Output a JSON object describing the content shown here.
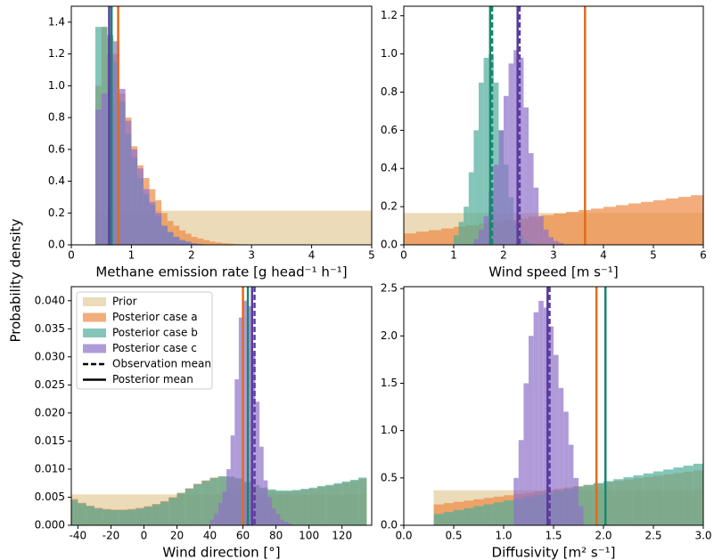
{
  "ylabel": "Probability density",
  "chart_data": [
    {
      "type": "histogram",
      "xlabel": "Methane emission rate [g head⁻¹ h⁻¹]",
      "xlim": [
        0,
        5
      ],
      "ylim": [
        0,
        1.5
      ],
      "xticks": [
        0,
        1,
        2,
        3,
        4,
        5
      ],
      "yticks": [
        {
          "value": 0,
          "label": "0.0"
        },
        0.2,
        0.4,
        0.6,
        0.8,
        {
          "value": 1,
          "label": "1.0"
        },
        1.2,
        1.4
      ],
      "series": [
        {
          "color": "#e2cc9a",
          "bins": [
            0.4,
            5.0
          ],
          "values": [
            0.215
          ]
        },
        {
          "color": "#ee8a45",
          "bins": [
            0.4,
            0.5,
            0.6,
            0.7,
            0.8,
            0.9,
            1.0,
            1.1,
            1.2,
            1.3,
            1.4,
            1.5,
            1.6,
            1.7,
            1.8,
            1.9,
            2.0,
            2.1,
            2.2,
            2.3,
            2.4,
            2.5,
            2.6,
            2.7,
            2.8,
            2.9,
            3.0
          ],
          "values": [
            1.0,
            1.37,
            1.3,
            1.2,
            0.95,
            0.8,
            0.62,
            0.5,
            0.42,
            0.35,
            0.28,
            0.2,
            0.15,
            0.12,
            0.09,
            0.07,
            0.05,
            0.04,
            0.03,
            0.02,
            0.015,
            0.01,
            0.008,
            0.005,
            0.003,
            0.002
          ]
        },
        {
          "color": "#4fae9b",
          "bins": [
            0.4,
            0.5,
            0.6,
            0.7,
            0.8,
            0.9,
            1.0,
            1.1,
            1.2,
            1.3,
            1.4,
            1.5,
            1.6,
            1.7,
            1.8,
            1.9,
            2.0,
            2.1,
            2.2,
            2.3,
            2.4,
            2.5,
            2.6,
            2.7,
            2.8,
            2.9,
            3.0
          ],
          "values": [
            1.37,
            1.37,
            1.32,
            1.15,
            0.9,
            0.7,
            0.55,
            0.42,
            0.32,
            0.25,
            0.18,
            0.12,
            0.08,
            0.05,
            0.03,
            0.02,
            0.01,
            0.005,
            0,
            0,
            0,
            0,
            0,
            0,
            0,
            0
          ]
        },
        {
          "color": "#8f70c9",
          "bins": [
            0.4,
            0.5,
            0.6,
            0.7,
            0.8,
            0.9,
            1.0,
            1.1,
            1.2,
            1.3,
            1.4,
            1.5,
            1.6,
            1.7,
            1.8,
            1.9,
            2.0,
            2.1,
            2.2,
            2.3,
            2.4,
            2.5,
            2.6,
            2.7,
            2.8,
            2.9,
            3.0
          ],
          "values": [
            0.85,
            0.95,
            1.2,
            1.28,
            0.98,
            0.78,
            0.6,
            0.48,
            0.35,
            0.27,
            0.2,
            0.12,
            0.08,
            0.05,
            0.03,
            0.02,
            0.01,
            0.005,
            0,
            0,
            0,
            0,
            0,
            0,
            0,
            0
          ]
        }
      ],
      "vlines": [
        {
          "x": 0.78,
          "color": "#e06c1c",
          "style": "solid"
        },
        {
          "x": 0.67,
          "color": "#18876e",
          "style": "solid"
        },
        {
          "x": 0.63,
          "color": "#5b3c9e",
          "style": "solid"
        }
      ]
    },
    {
      "type": "histogram",
      "xlabel": "Wind speed [m s⁻¹]",
      "xlim": [
        0,
        6
      ],
      "ylim": [
        0,
        1.25
      ],
      "xticks": [
        0,
        1,
        2,
        3,
        4,
        5,
        6
      ],
      "yticks": [
        {
          "value": 0,
          "label": "0.0"
        },
        0.2,
        0.4,
        0.6,
        0.8,
        {
          "value": 1,
          "label": "1.0"
        },
        1.2
      ],
      "series": [
        {
          "color": "#e2cc9a",
          "bins": [
            0,
            6
          ],
          "values": [
            0.167
          ]
        },
        {
          "color": "#ee8a45",
          "bins": [
            0,
            0.25,
            0.5,
            0.75,
            1,
            1.25,
            1.5,
            1.75,
            2,
            2.25,
            2.5,
            2.75,
            3,
            3.25,
            3.5,
            3.75,
            4,
            4.25,
            4.5,
            4.75,
            5,
            5.25,
            5.5,
            5.75,
            6
          ],
          "values": [
            0.06,
            0.069,
            0.077,
            0.086,
            0.095,
            0.103,
            0.112,
            0.121,
            0.13,
            0.138,
            0.147,
            0.156,
            0.164,
            0.173,
            0.182,
            0.19,
            0.199,
            0.208,
            0.217,
            0.225,
            0.234,
            0.243,
            0.251,
            0.26
          ]
        },
        {
          "color": "#4fae9b",
          "bins": [
            1.0,
            1.1,
            1.2,
            1.3,
            1.4,
            1.5,
            1.6,
            1.7,
            1.8,
            1.9,
            2.0,
            2.1,
            2.2,
            2.3,
            2.4,
            2.5,
            2.6
          ],
          "values": [
            0.05,
            0.12,
            0.2,
            0.38,
            0.6,
            0.85,
            0.98,
            1.0,
            0.85,
            0.6,
            0.42,
            0.25,
            0.12,
            0.05,
            0.02,
            0.01
          ]
        },
        {
          "color": "#8f70c9",
          "bins": [
            1.4,
            1.5,
            1.6,
            1.7,
            1.8,
            1.9,
            2.0,
            2.1,
            2.2,
            2.3,
            2.4,
            2.5,
            2.6,
            2.7,
            2.8,
            2.9,
            3.0,
            3.1,
            3.2
          ],
          "values": [
            0.03,
            0.08,
            0.15,
            0.28,
            0.42,
            0.6,
            0.78,
            0.95,
            1.02,
            0.98,
            0.72,
            0.48,
            0.3,
            0.15,
            0.08,
            0.04,
            0.02,
            0.01
          ]
        }
      ],
      "vlines": [
        {
          "x": 3.63,
          "color": "#e06c1c",
          "style": "solid"
        },
        {
          "x": 1.73,
          "color": "#18876e",
          "style": "solid"
        },
        {
          "x": 1.77,
          "color": "#18876e",
          "style": "dashed"
        },
        {
          "x": 2.28,
          "color": "#5b3c9e",
          "style": "solid"
        },
        {
          "x": 2.32,
          "color": "#5b3c9e",
          "style": "dashed"
        }
      ]
    },
    {
      "type": "histogram",
      "xlabel": "Wind direction [°]",
      "xlim": [
        -44,
        138
      ],
      "ylim": [
        0,
        0.0425
      ],
      "xticks": [
        -40,
        -20,
        0,
        20,
        40,
        60,
        80,
        100,
        120
      ],
      "yticks": [
        {
          "value": 0,
          "label": "0.000"
        },
        0.005,
        {
          "value": 0.01,
          "label": "0.010"
        },
        0.015,
        {
          "value": 0.02,
          "label": "0.020"
        },
        0.025,
        {
          "value": 0.03,
          "label": "0.030"
        },
        0.035,
        {
          "value": 0.04,
          "label": "0.040"
        }
      ],
      "series": [
        {
          "color": "#e2cc9a",
          "bins": [
            -45,
            135
          ],
          "values": [
            0.0055
          ]
        },
        {
          "color": "#ee8a45",
          "bins": [
            -45,
            -40,
            -35,
            -30,
            -25,
            -20,
            -15,
            -10,
            -5,
            0,
            5,
            10,
            15,
            20,
            25,
            30,
            35,
            40,
            45,
            50,
            55,
            60,
            65,
            70,
            75,
            80,
            85,
            90,
            95,
            100,
            105,
            110,
            115,
            120,
            125,
            130,
            135
          ],
          "values": [
            0.0047,
            0.004,
            0.0035,
            0.0031,
            0.0029,
            0.0028,
            0.0028,
            0.0029,
            0.0031,
            0.0034,
            0.0038,
            0.0043,
            0.005,
            0.0058,
            0.0066,
            0.0074,
            0.008,
            0.0085,
            0.0087,
            0.0086,
            0.0082,
            0.0076,
            0.007,
            0.0065,
            0.0062,
            0.006,
            0.006,
            0.0061,
            0.0063,
            0.0065,
            0.0068,
            0.007,
            0.0073,
            0.0076,
            0.0079,
            0.0083
          ]
        },
        {
          "color": "#4fae9b",
          "bins": [
            -45,
            -40,
            -35,
            -30,
            -25,
            -20,
            -15,
            -10,
            -5,
            0,
            5,
            10,
            15,
            20,
            25,
            30,
            35,
            40,
            45,
            50,
            55,
            60,
            65,
            70,
            75,
            80,
            85,
            90,
            95,
            100,
            105,
            110,
            115,
            120,
            125,
            130,
            135
          ],
          "values": [
            0.0045,
            0.0039,
            0.0034,
            0.003,
            0.0028,
            0.0027,
            0.0027,
            0.0028,
            0.003,
            0.0033,
            0.0037,
            0.0042,
            0.0049,
            0.0057,
            0.0065,
            0.0073,
            0.0079,
            0.0084,
            0.0087,
            0.0087,
            0.0084,
            0.0078,
            0.0072,
            0.0067,
            0.0064,
            0.0062,
            0.0062,
            0.0063,
            0.0065,
            0.0067,
            0.007,
            0.0072,
            0.0075,
            0.0078,
            0.0081,
            0.0085
          ]
        },
        {
          "color": "#8f70c9",
          "bins": [
            40,
            42.5,
            45,
            47.5,
            50,
            52.5,
            55,
            57.5,
            60,
            62.5,
            65,
            67.5,
            70,
            72.5,
            75,
            77.5,
            80,
            82.5,
            85,
            87.5,
            90
          ],
          "values": [
            0.001,
            0.002,
            0.004,
            0.006,
            0.01,
            0.016,
            0.026,
            0.037,
            0.04,
            0.039,
            0.031,
            0.022,
            0.014,
            0.008,
            0.005,
            0.003,
            0.002,
            0.001,
            0.0006,
            0.0003
          ]
        }
      ],
      "vlines": [
        {
          "x": 60,
          "color": "#e06c1c",
          "style": "solid"
        },
        {
          "x": 63,
          "color": "#18876e",
          "style": "solid"
        },
        {
          "x": 65.5,
          "color": "#5b3c9e",
          "style": "solid"
        },
        {
          "x": 67,
          "color": "#5b3c9e",
          "style": "dashed"
        }
      ],
      "legend": {
        "corner": "upper left",
        "entries": [
          {
            "label": "Prior",
            "color": "#e2cc9a",
            "style": "patch"
          },
          {
            "label": "Posterior case a",
            "color": "#ee8a45",
            "style": "patch"
          },
          {
            "label": "Posterior case b",
            "color": "#4fae9b",
            "style": "patch"
          },
          {
            "label": "Posterior case c",
            "color": "#8f70c9",
            "style": "patch"
          },
          {
            "label": "Observation mean",
            "color": "#000000",
            "style": "dashed"
          },
          {
            "label": "Posterior mean",
            "color": "#000000",
            "style": "solid"
          }
        ]
      }
    },
    {
      "type": "histogram",
      "xlabel": "Diffusivity [m² s⁻¹]",
      "xlim": [
        0,
        3
      ],
      "ylim": [
        0,
        2.52
      ],
      "xticks": [
        {
          "value": 0,
          "label": "0.0"
        },
        0.5,
        {
          "value": 1,
          "label": "1.0"
        },
        1.5,
        {
          "value": 2,
          "label": "2.0"
        },
        2.5,
        {
          "value": 3,
          "label": "3.0"
        }
      ],
      "yticks": [
        {
          "value": 0,
          "label": "0.0"
        },
        0.5,
        {
          "value": 1,
          "label": "1.0"
        },
        1.5,
        {
          "value": 2,
          "label": "2.0"
        },
        2.5
      ],
      "series": [
        {
          "color": "#e2cc9a",
          "bins": [
            0.3,
            3.0
          ],
          "values": [
            0.37
          ]
        },
        {
          "color": "#ee8a45",
          "bins": [
            0.3,
            0.4,
            0.5,
            0.6,
            0.7,
            0.8,
            0.9,
            1.0,
            1.1,
            1.2,
            1.3,
            1.4,
            1.5,
            1.6,
            1.7,
            1.8,
            1.9,
            2.0,
            2.1,
            2.2,
            2.3,
            2.4,
            2.5,
            2.6,
            2.7,
            2.8,
            2.9,
            3.0
          ],
          "values": [
            0.22,
            0.234,
            0.248,
            0.261,
            0.275,
            0.289,
            0.303,
            0.317,
            0.331,
            0.344,
            0.358,
            0.372,
            0.386,
            0.4,
            0.414,
            0.427,
            0.441,
            0.455,
            0.469,
            0.483,
            0.497,
            0.51,
            0.524,
            0.538,
            0.552,
            0.566,
            0.58
          ]
        },
        {
          "color": "#4fae9b",
          "bins": [
            0.3,
            0.4,
            0.5,
            0.6,
            0.7,
            0.8,
            0.9,
            1.0,
            1.1,
            1.2,
            1.3,
            1.4,
            1.5,
            1.6,
            1.7,
            1.8,
            1.9,
            2.0,
            2.1,
            2.2,
            2.3,
            2.4,
            2.5,
            2.6,
            2.7,
            2.8,
            2.9,
            3.0
          ],
          "values": [
            0.12,
            0.14,
            0.161,
            0.181,
            0.202,
            0.222,
            0.242,
            0.263,
            0.283,
            0.304,
            0.324,
            0.344,
            0.365,
            0.385,
            0.406,
            0.426,
            0.446,
            0.467,
            0.487,
            0.508,
            0.528,
            0.548,
            0.569,
            0.589,
            0.61,
            0.63,
            0.65
          ]
        },
        {
          "color": "#8f70c9",
          "bins": [
            1.1,
            1.15,
            1.2,
            1.25,
            1.3,
            1.35,
            1.4,
            1.45,
            1.5,
            1.55,
            1.6,
            1.65,
            1.7,
            1.75,
            1.8
          ],
          "values": [
            0.5,
            0.9,
            1.5,
            2.0,
            2.25,
            2.37,
            2.3,
            2.1,
            1.8,
            1.45,
            1.2,
            0.85,
            0.5,
            0.2
          ]
        }
      ],
      "vlines": [
        {
          "x": 1.93,
          "color": "#e06c1c",
          "style": "solid"
        },
        {
          "x": 2.02,
          "color": "#18876e",
          "style": "solid"
        },
        {
          "x": 1.44,
          "color": "#5b3c9e",
          "style": "solid"
        },
        {
          "x": 1.46,
          "color": "#5b3c9e",
          "style": "dashed"
        }
      ]
    }
  ]
}
